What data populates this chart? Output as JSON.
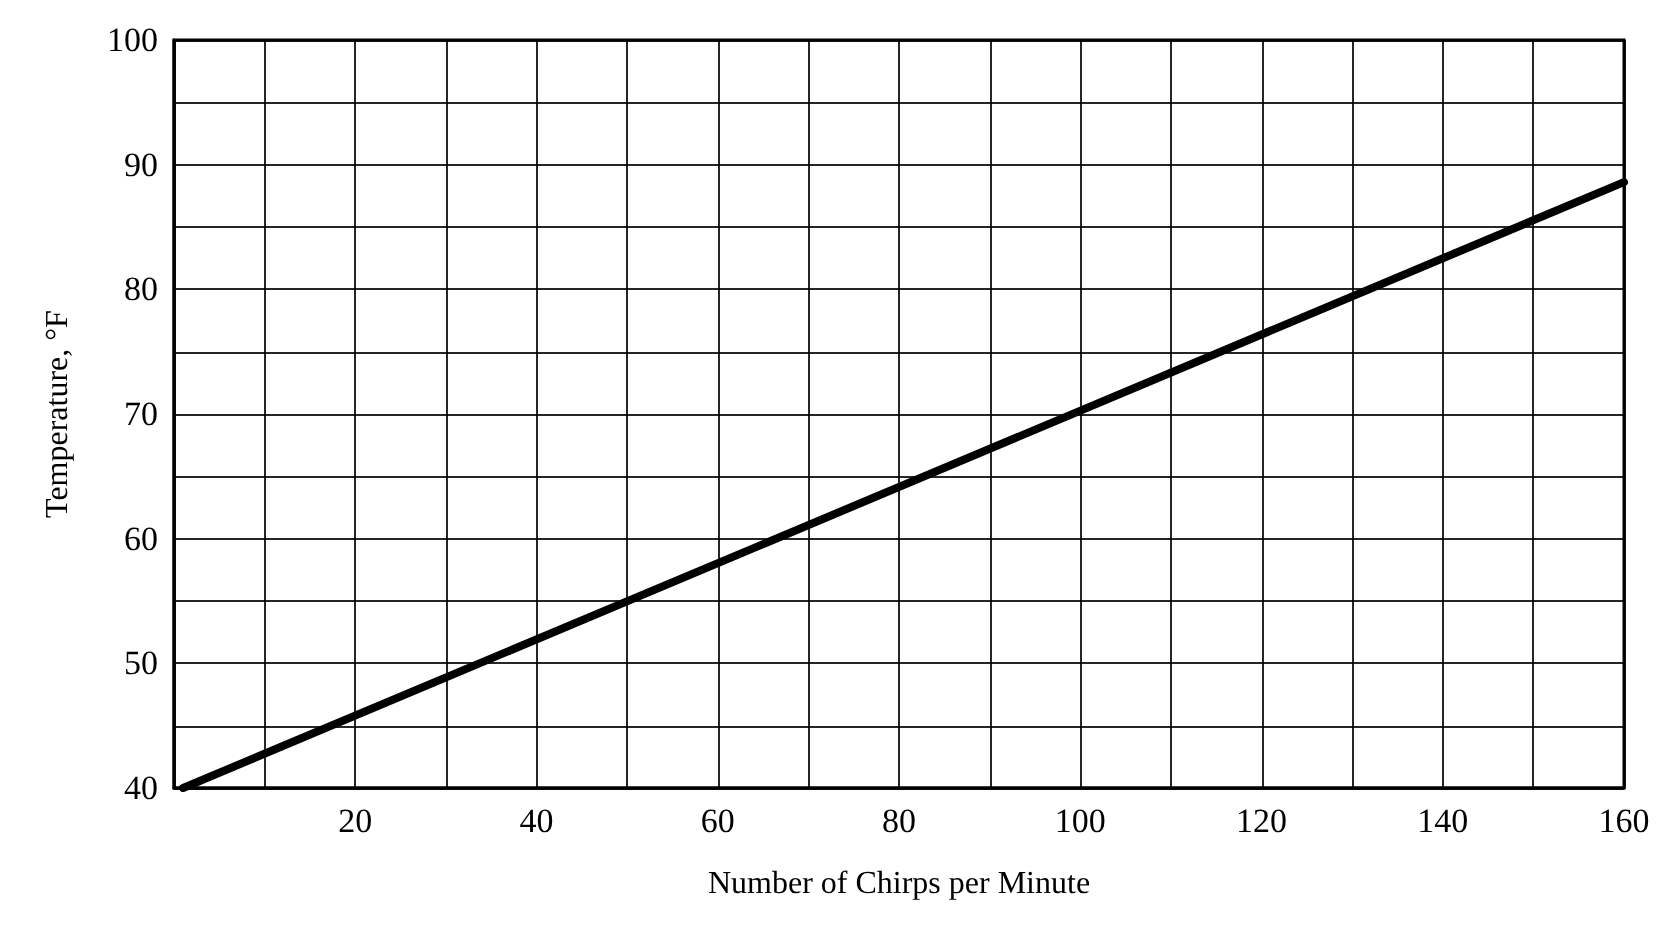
{
  "chart_data": {
    "type": "line",
    "xlabel": "Number of Chirps per Minute",
    "ylabel": "Temperature, °F",
    "x": [
      1,
      160
    ],
    "series": [
      {
        "color": "#000000",
        "values": [
          40,
          88.6
        ]
      }
    ],
    "xlim": [
      0,
      160
    ],
    "xticks": [
      {
        "value": 0,
        "label": null
      },
      {
        "value": 10,
        "label": null
      },
      20,
      {
        "value": 30,
        "label": null
      },
      40,
      {
        "value": 50,
        "label": null
      },
      60,
      {
        "value": 70,
        "label": null
      },
      80,
      {
        "value": 90,
        "label": null
      },
      100,
      {
        "value": 110,
        "label": null
      },
      120,
      {
        "value": 130,
        "label": null
      },
      140,
      {
        "value": 150,
        "label": null
      },
      160
    ],
    "ylim": [
      40,
      100
    ],
    "yticks": [
      40,
      {
        "value": 45,
        "label": null
      },
      50,
      {
        "value": 55,
        "label": null
      },
      60,
      {
        "value": 65,
        "label": null
      },
      70,
      {
        "value": 75,
        "label": null
      },
      80,
      {
        "value": 85,
        "label": null
      },
      90,
      {
        "value": 95,
        "label": null
      },
      100
    ],
    "grid": true,
    "marker": "none",
    "line_style": "solid"
  }
}
